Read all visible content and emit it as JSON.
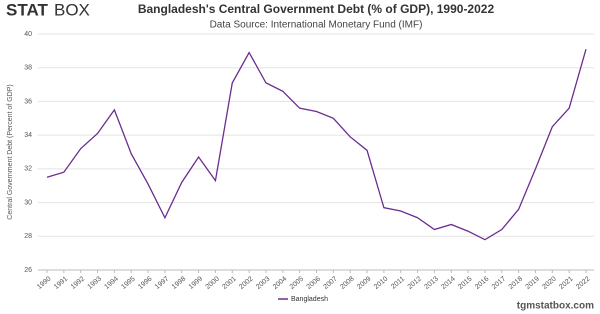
{
  "logo": [
    "STAT",
    "BOX"
  ],
  "chart_data": {
    "type": "line",
    "title": "Bangladesh's Central Government Debt (% of GDP), 1990-2022",
    "subtitle": "Data Source: International Monetary Fund (IMF)",
    "y_label": "Central Government Debt (Percent of GDP)",
    "categories": [
      "1990",
      "1991",
      "1992",
      "1993",
      "1994",
      "1995",
      "1996",
      "1997",
      "1998",
      "1999",
      "2000",
      "2001",
      "2002",
      "2003",
      "2004",
      "2005",
      "2006",
      "2007",
      "2008",
      "2009",
      "2010",
      "2011",
      "2012",
      "2013",
      "2014",
      "2015",
      "2016",
      "2017",
      "2018",
      "2019",
      "2020",
      "2021",
      "2022"
    ],
    "series": [
      {
        "name": "Bangladesh",
        "color": "#6b2d8f",
        "values": [
          31.5,
          31.8,
          33.2,
          34.1,
          35.5,
          32.9,
          31.1,
          29.1,
          31.2,
          32.7,
          31.3,
          37.1,
          38.9,
          37.1,
          36.6,
          35.6,
          35.4,
          35.0,
          33.9,
          33.1,
          29.7,
          29.5,
          29.1,
          28.4,
          28.7,
          28.3,
          27.8,
          28.4,
          29.6,
          32.0,
          34.5,
          35.6,
          39.1
        ]
      }
    ],
    "ylim": [
      26,
      40
    ],
    "yticks": [
      26,
      28,
      30,
      32,
      34,
      36,
      38,
      40
    ],
    "grid": true
  },
  "watermark": "tgmstatbox.com"
}
